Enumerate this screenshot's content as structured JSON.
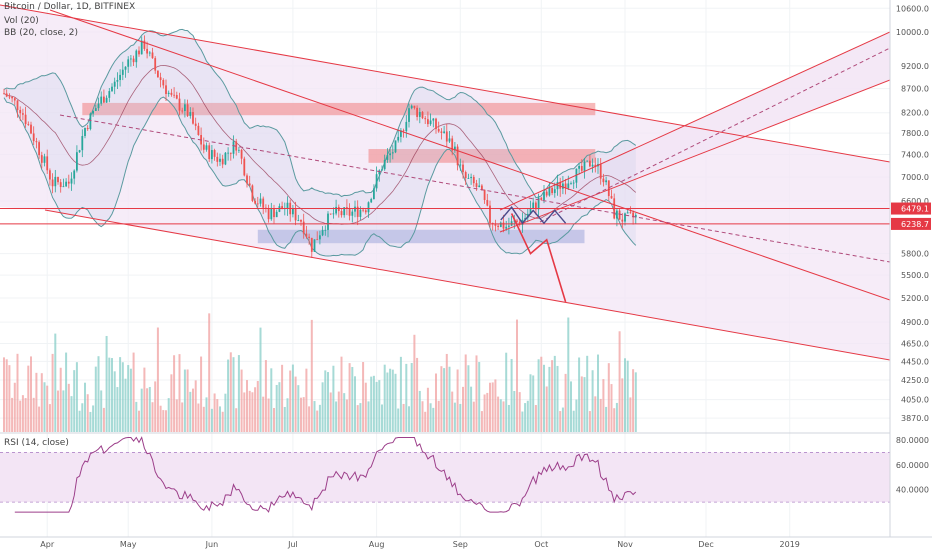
{
  "header": {
    "symbol_line": "Bitcoin / Dollar, 1D, BITFINEX",
    "vol_indicator": "Vol (20)",
    "bb_indicator": "BB (20, close, 2)",
    "rsi_indicator": "RSI (14, close)"
  },
  "colors": {
    "up": "#80cbc4",
    "down": "#ef9a9a",
    "candle_up": "#26a69a",
    "candle_down": "#ef5350",
    "channel_fill": "#f3e5f5",
    "bb_line": "#5b9aa0",
    "resistance_zone": "#f08080",
    "support_zone": "#9fa8da",
    "trendline": "#e53945",
    "rsi_line": "#9c3f8a"
  },
  "chart_data": {
    "type": "candlestick",
    "price_axis": {
      "ticks": [
        10600,
        10000,
        9200,
        8700,
        8200,
        7800,
        7400,
        7000,
        6600,
        5800,
        5500,
        5200,
        4900,
        4650,
        4450,
        4250,
        4050,
        3870
      ],
      "tick_labels": [
        "10600.0",
        "10000.0",
        "9200.0",
        "8700.0",
        "8200.0",
        "7800.0",
        "7400.0",
        "7000.0",
        "6600.0",
        "5800.0",
        "5500.0",
        "5200.0",
        "4900.0",
        "4650.0",
        "4450.0",
        "4250.0",
        "4050.0",
        "3870.0"
      ],
      "scale": "log",
      "price_tags": [
        {
          "value": 6479.1,
          "label": "6479.1"
        },
        {
          "value": 6238.7,
          "label": "6238.7"
        }
      ]
    },
    "time_axis": {
      "labels": [
        "Apr",
        "May",
        "Jun",
        "Jul",
        "Aug",
        "Sep",
        "Oct",
        "Nov",
        "Dec",
        "2019"
      ]
    },
    "rsi_axis": {
      "ticks": [
        80,
        60,
        40
      ],
      "tick_labels": [
        "80.0000",
        "60.0000",
        "40.0000"
      ],
      "band_upper": 70,
      "band_lower": 30
    },
    "resistance_zones": [
      {
        "from": "Apr 14",
        "to": "Oct 21",
        "low": 8150,
        "high": 8400
      },
      {
        "from": "Jul 29",
        "to": "Oct 21",
        "low": 7250,
        "high": 7500
      }
    ],
    "support_zones": [
      {
        "from": "Jun 18",
        "to": "Oct 17",
        "low": 5950,
        "high": 6150
      }
    ],
    "projection_path": [
      {
        "date": "Sep 20",
        "price": 6400
      },
      {
        "date": "Sep 27",
        "price": 5800
      },
      {
        "date": "Oct 3",
        "price": 6000
      },
      {
        "date": "Oct 10",
        "price": 5150
      }
    ],
    "zigzag_path": [
      {
        "date": "Sep 16",
        "price": 6300
      },
      {
        "date": "Sep 20",
        "price": 6500
      },
      {
        "date": "Sep 24",
        "price": 6250
      },
      {
        "date": "Sep 28",
        "price": 6450
      },
      {
        "date": "Oct 2",
        "price": 6250
      },
      {
        "date": "Oct 6",
        "price": 6450
      },
      {
        "date": "Oct 10",
        "price": 6250
      }
    ]
  }
}
